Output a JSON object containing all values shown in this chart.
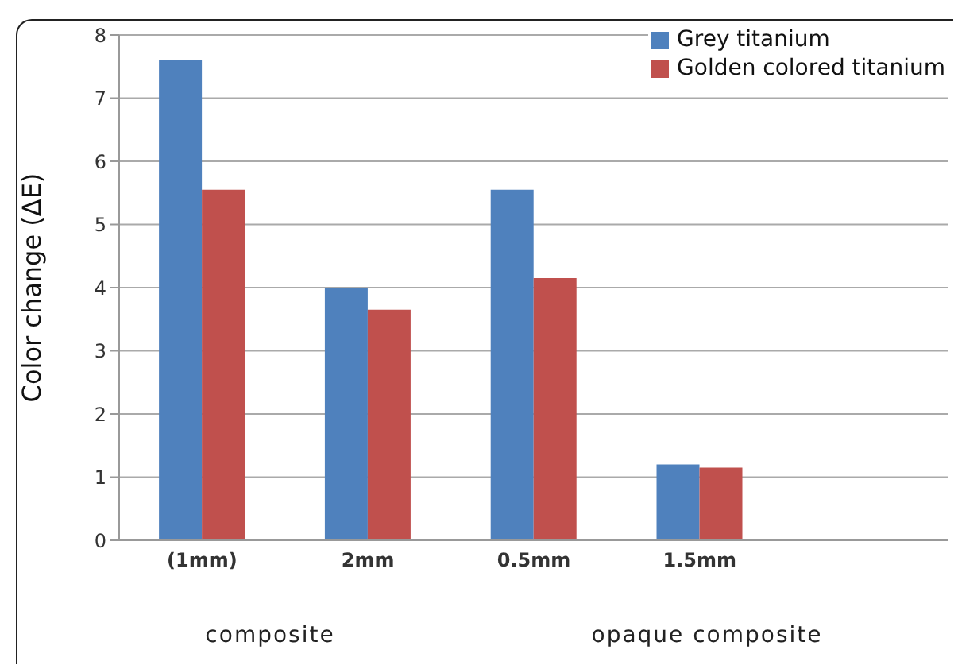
{
  "chart_data": {
    "type": "bar",
    "ylabel": "Color change (ΔE)",
    "categories": [
      "(1mm)",
      "2mm",
      "0.5mm",
      "1.5mm",
      null
    ],
    "series": [
      {
        "name": "Grey titanium",
        "color": "#4f81bd",
        "values": [
          7.6,
          4.0,
          5.55,
          1.2,
          null
        ]
      },
      {
        "name": "Golden colored titanium",
        "color": "#c0504d",
        "values": [
          5.55,
          3.65,
          4.15,
          1.15,
          null
        ]
      }
    ],
    "ylim": [
      0,
      8
    ],
    "yticks": [
      0,
      1,
      2,
      3,
      4,
      5,
      6,
      7,
      8
    ],
    "grid": "y",
    "legend": "top right",
    "annotations": [
      "composite",
      "opaque composite"
    ]
  }
}
